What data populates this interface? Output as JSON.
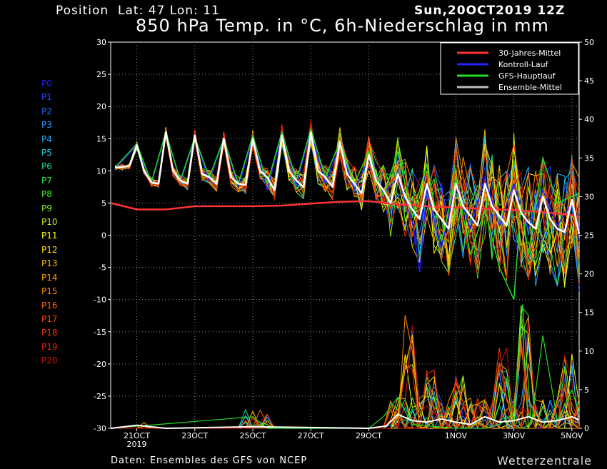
{
  "header": {
    "position_label": "Position",
    "location": "Lat: 47 Lon: 11",
    "run_date": "Sun,20OCT2019 12Z",
    "title": "850 hPa Temp. in °C, 6h-Niederschlag in mm"
  },
  "footer": {
    "source": "Daten: Ensembles des GFS von NCEP",
    "brand": "Wetterzentrale"
  },
  "members": [
    {
      "label": "P0",
      "color": "#2222ff"
    },
    {
      "label": "P1",
      "color": "#2244ff"
    },
    {
      "label": "P2",
      "color": "#2266ff"
    },
    {
      "label": "P3",
      "color": "#2299ff"
    },
    {
      "label": "P4",
      "color": "#22aaff"
    },
    {
      "label": "P5",
      "color": "#22ccee"
    },
    {
      "label": "P6",
      "color": "#22dd88"
    },
    {
      "label": "P7",
      "color": "#22ee44"
    },
    {
      "label": "P8",
      "color": "#44ee22"
    },
    {
      "label": "P9",
      "color": "#88ee22"
    },
    {
      "label": "P10",
      "color": "#bbee22"
    },
    {
      "label": "P11",
      "color": "#ffff00"
    },
    {
      "label": "P12",
      "color": "#ffdd00"
    },
    {
      "label": "P13",
      "color": "#ffbb00"
    },
    {
      "label": "P14",
      "color": "#ff9900"
    },
    {
      "label": "P15",
      "color": "#ff8800"
    },
    {
      "label": "P16",
      "color": "#ff6600"
    },
    {
      "label": "P17",
      "color": "#ff4400"
    },
    {
      "label": "P18",
      "color": "#ee3300"
    },
    {
      "label": "P19",
      "color": "#dd2200"
    },
    {
      "label": "P20",
      "color": "#cc1100"
    }
  ],
  "chart_data": {
    "type": "line",
    "left_axis": {
      "min": -30,
      "max": 30,
      "ticks": [
        30,
        25,
        20,
        15,
        10,
        5,
        0,
        -5,
        -10,
        -15,
        -20,
        -25,
        -30
      ]
    },
    "right_axis": {
      "min": 0,
      "max": 50,
      "ticks": [
        50,
        45,
        40,
        35,
        30,
        25,
        20,
        15,
        10,
        5,
        0
      ]
    },
    "x_ticks": [
      {
        "day": 1,
        "label": "21OCT",
        "sub": "2019"
      },
      {
        "day": 3,
        "label": "23OCT",
        "sub": ""
      },
      {
        "day": 5,
        "label": "25OCT",
        "sub": ""
      },
      {
        "day": 7,
        "label": "27OCT",
        "sub": ""
      },
      {
        "day": 9,
        "label": "29OCT",
        "sub": ""
      },
      {
        "day": 12,
        "label": "1NOV",
        "sub": ""
      },
      {
        "day": 14,
        "label": "3NOV",
        "sub": ""
      },
      {
        "day": 16,
        "label": "5NOV",
        "sub": ""
      }
    ],
    "x_range": [
      0.1,
      16.25
    ],
    "legend": {
      "placement": "top-right",
      "items": [
        {
          "name": "30-Jahres-Mittel",
          "color": "#ff3333"
        },
        {
          "name": "Kontroll-Lauf",
          "color": "#2222ff"
        },
        {
          "name": "GFS-Hauptlauf",
          "color": "#22dd22"
        },
        {
          "name": "Ensemble-Mittel",
          "color": "#bbbbbb"
        }
      ]
    },
    "climate_mean": [
      [
        0.1,
        5
      ],
      [
        1,
        4
      ],
      [
        2,
        4
      ],
      [
        3,
        4.5
      ],
      [
        4,
        4.5
      ],
      [
        5,
        4.5
      ],
      [
        6,
        4.6
      ],
      [
        7,
        4.9
      ],
      [
        8,
        5.2
      ],
      [
        9,
        5.3
      ],
      [
        10,
        4.8
      ],
      [
        11,
        4.5
      ],
      [
        12,
        4.3
      ],
      [
        13,
        4.1
      ],
      [
        14,
        3.9
      ],
      [
        15,
        3.6
      ],
      [
        16,
        3.1
      ],
      [
        16.25,
        2.9
      ]
    ],
    "ensemble_mean_temp": [
      [
        0.25,
        10.5
      ],
      [
        0.5,
        10.6
      ],
      [
        0.75,
        10.8
      ],
      [
        1,
        14
      ],
      [
        1.25,
        10
      ],
      [
        1.5,
        8.2
      ],
      [
        1.75,
        8
      ],
      [
        2,
        16
      ],
      [
        2.25,
        10
      ],
      [
        2.5,
        8.5
      ],
      [
        2.75,
        8
      ],
      [
        3,
        15.5
      ],
      [
        3.25,
        9.5
      ],
      [
        3.5,
        9
      ],
      [
        3.75,
        8
      ],
      [
        4,
        15
      ],
      [
        4.25,
        9
      ],
      [
        4.5,
        8
      ],
      [
        4.75,
        7.8
      ],
      [
        5,
        15
      ],
      [
        5.25,
        10
      ],
      [
        5.5,
        9
      ],
      [
        5.75,
        7
      ],
      [
        6,
        15.5
      ],
      [
        6.25,
        10
      ],
      [
        6.5,
        8.5
      ],
      [
        6.75,
        7.5
      ],
      [
        7,
        16
      ],
      [
        7.25,
        10
      ],
      [
        7.5,
        9
      ],
      [
        7.75,
        7.5
      ],
      [
        8,
        14.5
      ],
      [
        8.25,
        9.5
      ],
      [
        8.5,
        8
      ],
      [
        8.75,
        6.5
      ],
      [
        9,
        12.5
      ],
      [
        9.25,
        8.5
      ],
      [
        9.5,
        7
      ],
      [
        9.75,
        5
      ],
      [
        10,
        9.5
      ],
      [
        10.25,
        6
      ],
      [
        10.5,
        4
      ],
      [
        10.75,
        2.5
      ],
      [
        11,
        8
      ],
      [
        11.25,
        4
      ],
      [
        11.5,
        2.5
      ],
      [
        11.75,
        1
      ],
      [
        12,
        8
      ],
      [
        12.25,
        4.5
      ],
      [
        12.5,
        3
      ],
      [
        12.75,
        1.5
      ],
      [
        13,
        8
      ],
      [
        13.25,
        4.5
      ],
      [
        13.5,
        3
      ],
      [
        13.75,
        1.5
      ],
      [
        14,
        7
      ],
      [
        14.25,
        3.5
      ],
      [
        14.5,
        2
      ],
      [
        14.75,
        1
      ],
      [
        15,
        6
      ],
      [
        15.25,
        2.5
      ],
      [
        15.5,
        1
      ],
      [
        15.75,
        0.5
      ],
      [
        16,
        5.5
      ],
      [
        16.25,
        0.2
      ]
    ],
    "ensemble_mean_precip": [
      [
        0.1,
        0
      ],
      [
        1,
        0.4
      ],
      [
        2,
        0
      ],
      [
        5,
        0.2
      ],
      [
        9,
        0
      ],
      [
        9.6,
        0.3
      ],
      [
        10,
        1.8
      ],
      [
        10.5,
        1.0
      ],
      [
        11,
        0.8
      ],
      [
        11.5,
        1.2
      ],
      [
        12,
        0.8
      ],
      [
        12.5,
        0.5
      ],
      [
        13,
        1.5
      ],
      [
        13.5,
        0.8
      ],
      [
        14,
        1.0
      ],
      [
        14.5,
        1.5
      ],
      [
        15,
        0.8
      ],
      [
        15.5,
        1.0
      ],
      [
        16,
        1.5
      ],
      [
        16.25,
        1.1
      ]
    ],
    "control_temp": [
      [
        0.25,
        10.3
      ],
      [
        1,
        14
      ],
      [
        1.5,
        8
      ],
      [
        2,
        16
      ],
      [
        2.5,
        8.3
      ],
      [
        3,
        15
      ],
      [
        3.5,
        8.5
      ],
      [
        4,
        15
      ],
      [
        4.5,
        7.5
      ],
      [
        5,
        15
      ],
      [
        5.5,
        7
      ],
      [
        6,
        16
      ],
      [
        6.5,
        8
      ],
      [
        7,
        16
      ],
      [
        7.5,
        8
      ],
      [
        8,
        14
      ],
      [
        8.5,
        7
      ],
      [
        9,
        12
      ],
      [
        9.5,
        6.5
      ],
      [
        10,
        9
      ],
      [
        10.5,
        2
      ],
      [
        10.75,
        -5.7
      ],
      [
        11,
        7
      ],
      [
        11.5,
        -2
      ],
      [
        12,
        8
      ],
      [
        12.5,
        1
      ],
      [
        13,
        9
      ],
      [
        13.5,
        1.5
      ],
      [
        14,
        8
      ],
      [
        14.5,
        1
      ],
      [
        15,
        7
      ],
      [
        15.5,
        1.5
      ],
      [
        16,
        5
      ],
      [
        16.25,
        1
      ]
    ],
    "gfs_main_temp": [
      [
        0.25,
        10.5
      ],
      [
        1,
        14.2
      ],
      [
        1.5,
        8.2
      ],
      [
        2,
        16
      ],
      [
        2.5,
        8.5
      ],
      [
        3,
        15.2
      ],
      [
        3.5,
        9
      ],
      [
        4,
        15
      ],
      [
        4.5,
        8
      ],
      [
        5,
        15.5
      ],
      [
        5.5,
        8
      ],
      [
        6,
        16
      ],
      [
        6.5,
        8.5
      ],
      [
        7,
        16.5
      ],
      [
        7.5,
        9
      ],
      [
        8,
        14.5
      ],
      [
        8.5,
        8
      ],
      [
        9,
        13
      ],
      [
        9.5,
        6
      ],
      [
        10,
        13
      ],
      [
        10.5,
        3
      ],
      [
        11,
        11
      ],
      [
        11.5,
        -1
      ],
      [
        12,
        9
      ],
      [
        12.5,
        -3
      ],
      [
        13,
        4
      ],
      [
        13.5,
        -5
      ],
      [
        14,
        -10
      ],
      [
        14.25,
        5
      ],
      [
        14.5,
        -3
      ],
      [
        15,
        12
      ],
      [
        15.5,
        5
      ],
      [
        16,
        6
      ],
      [
        16.25,
        6.5
      ]
    ],
    "gfs_main_precip": [
      [
        0.1,
        0
      ],
      [
        5,
        1.5
      ],
      [
        5.5,
        0
      ],
      [
        9,
        0
      ],
      [
        9.5,
        1.5
      ],
      [
        10,
        4
      ],
      [
        10.5,
        0.5
      ],
      [
        12,
        0
      ],
      [
        13,
        0
      ],
      [
        13.5,
        0.5
      ],
      [
        14,
        2
      ],
      [
        14.3,
        16
      ],
      [
        14.6,
        0.5
      ],
      [
        15,
        12
      ],
      [
        15.5,
        1
      ],
      [
        16,
        5
      ],
      [
        16.25,
        2
      ]
    ],
    "member_ranges": {
      "temp_spread": [
        [
          0.25,
          0.4
        ],
        [
          4,
          1.2
        ],
        [
          7,
          2
        ],
        [
          9,
          3
        ],
        [
          10,
          6
        ],
        [
          12,
          8
        ],
        [
          14,
          9
        ],
        [
          16.25,
          9
        ]
      ],
      "precip_peaks": [
        [
          10.4,
          15
        ],
        [
          11.2,
          8
        ],
        [
          12.2,
          7
        ],
        [
          13.6,
          11
        ],
        [
          14.3,
          16
        ],
        [
          15.8,
          10
        ]
      ]
    }
  }
}
